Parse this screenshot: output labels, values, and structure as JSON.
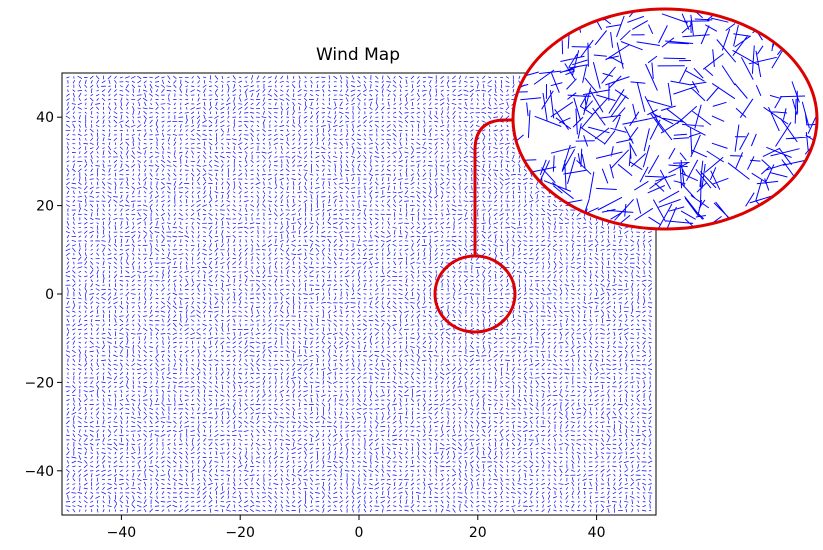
{
  "chart_data": {
    "type": "quiver",
    "title": "Wind Map",
    "xlabel": "",
    "ylabel": "",
    "xlim": [
      -50,
      50
    ],
    "ylim": [
      -50,
      50
    ],
    "x_ticks": [
      -40,
      -20,
      0,
      20,
      40
    ],
    "y_ticks": [
      -40,
      -20,
      0,
      20,
      40
    ],
    "x_tick_labels": [
      "−40",
      "−20",
      "0",
      "20",
      "40"
    ],
    "y_tick_labels": [
      "−40",
      "−20",
      "0",
      "20",
      "40"
    ],
    "grid": false,
    "legend": "none",
    "vector_field": {
      "x_range": [
        -49,
        49
      ],
      "y_range": [
        -49,
        49
      ],
      "spacing": 1,
      "pattern": "random short arrows with diagonal banding from lower-left to upper-right"
    },
    "inset": {
      "type": "magnifier",
      "center": [
        20,
        0
      ],
      "description": "zoomed view of the vector field near (20, 0)"
    }
  },
  "colors": {
    "arrows": "#0000ff",
    "highlight": "#dd0000",
    "axes": "#000000",
    "background": "#ffffff"
  }
}
